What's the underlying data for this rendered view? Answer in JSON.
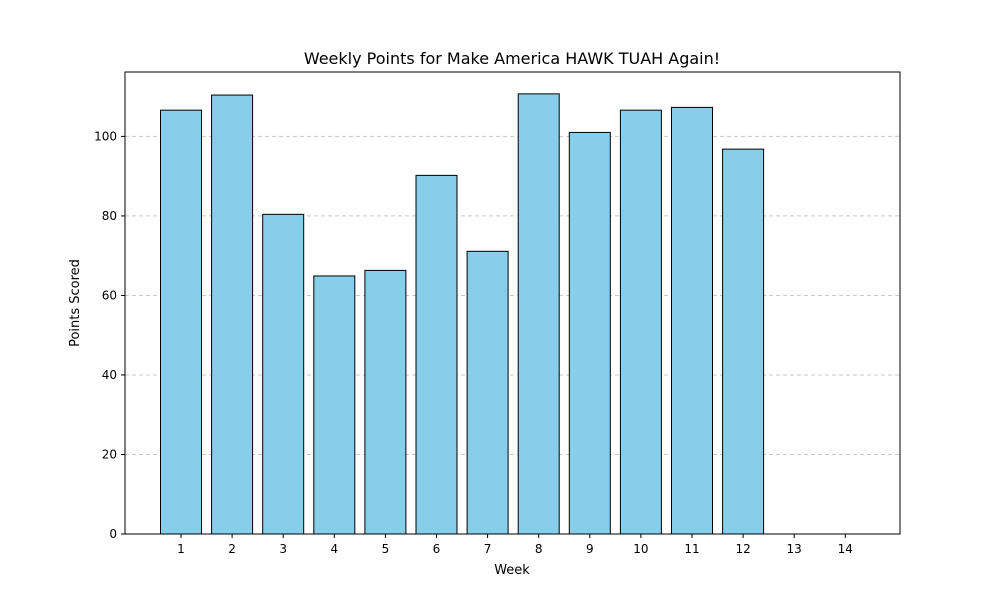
{
  "chart_data": {
    "type": "bar",
    "title": "Weekly Points for Make America HAWK TUAH Again!",
    "xlabel": "Week",
    "ylabel": "Points Scored",
    "categories": [
      "1",
      "2",
      "3",
      "4",
      "5",
      "6",
      "7",
      "8",
      "9",
      "10",
      "11",
      "12",
      "13",
      "14"
    ],
    "values": [
      106.6,
      110.4,
      80.4,
      64.9,
      66.3,
      90.2,
      71.1,
      110.7,
      101.0,
      106.6,
      107.3,
      96.8,
      0,
      0
    ],
    "ylim": [
      0,
      116.2
    ],
    "yticks": [
      0,
      20,
      40,
      60,
      80,
      100
    ],
    "grid": {
      "axis": "y",
      "style": "dashed"
    },
    "legend": "none",
    "colors": {
      "bar_fill": "#87ceeb",
      "bar_edge": "#000000",
      "grid": "#c8c8c8"
    }
  }
}
